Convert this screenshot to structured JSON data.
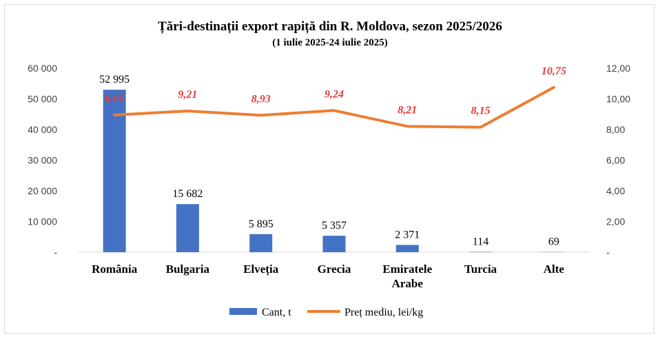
{
  "chart_data": {
    "type": "bar",
    "title": "Țări-destinații export rapiță din R. Moldova, sezon 2025/2026",
    "subtitle": "(1 iulie 2025-24 iulie 2025)",
    "categories": [
      "România",
      "Bulgaria",
      "Elveția",
      "Grecia",
      "Emiratele Arabe",
      "Turcia",
      "Alte"
    ],
    "category_lines": [
      [
        "România"
      ],
      [
        "Bulgaria"
      ],
      [
        "Elveția"
      ],
      [
        "Grecia"
      ],
      [
        "Emiratele",
        "Arabe"
      ],
      [
        "Turcia"
      ],
      [
        "Alte"
      ]
    ],
    "series": [
      {
        "name": "Cant, t",
        "type": "bar",
        "axis": "left",
        "color": "#4472c4",
        "values": [
          52995,
          15682,
          5895,
          5357,
          2371,
          114,
          69
        ],
        "labels": [
          "52 995",
          "15 682",
          "5 895",
          "5 357",
          "2 371",
          "114",
          "69"
        ]
      },
      {
        "name": "Preț mediu, lei/kg",
        "type": "line",
        "axis": "right",
        "color": "#ed7d31",
        "values": [
          8.95,
          9.21,
          8.93,
          9.24,
          8.21,
          8.15,
          10.75
        ],
        "labels": [
          "8,95",
          "9,21",
          "8,93",
          "9,24",
          "8,21",
          "8,15",
          "10,75"
        ],
        "label_color": "#e53935"
      }
    ],
    "y_left": {
      "ylim": [
        0,
        60000
      ],
      "ticks": [
        0,
        10000,
        20000,
        30000,
        40000,
        50000,
        60000
      ],
      "tick_labels": [
        "-",
        "10 000",
        "20 000",
        "30 000",
        "40 000",
        "50 000",
        "60 000"
      ]
    },
    "y_right": {
      "ylim": [
        0,
        12
      ],
      "ticks": [
        0,
        2,
        4,
        6,
        8,
        10,
        12
      ],
      "tick_labels": [
        "-",
        "2,00",
        "4,00",
        "6,00",
        "8,00",
        "10,00",
        "12,00"
      ]
    },
    "grid": false,
    "legend": "bottom"
  }
}
